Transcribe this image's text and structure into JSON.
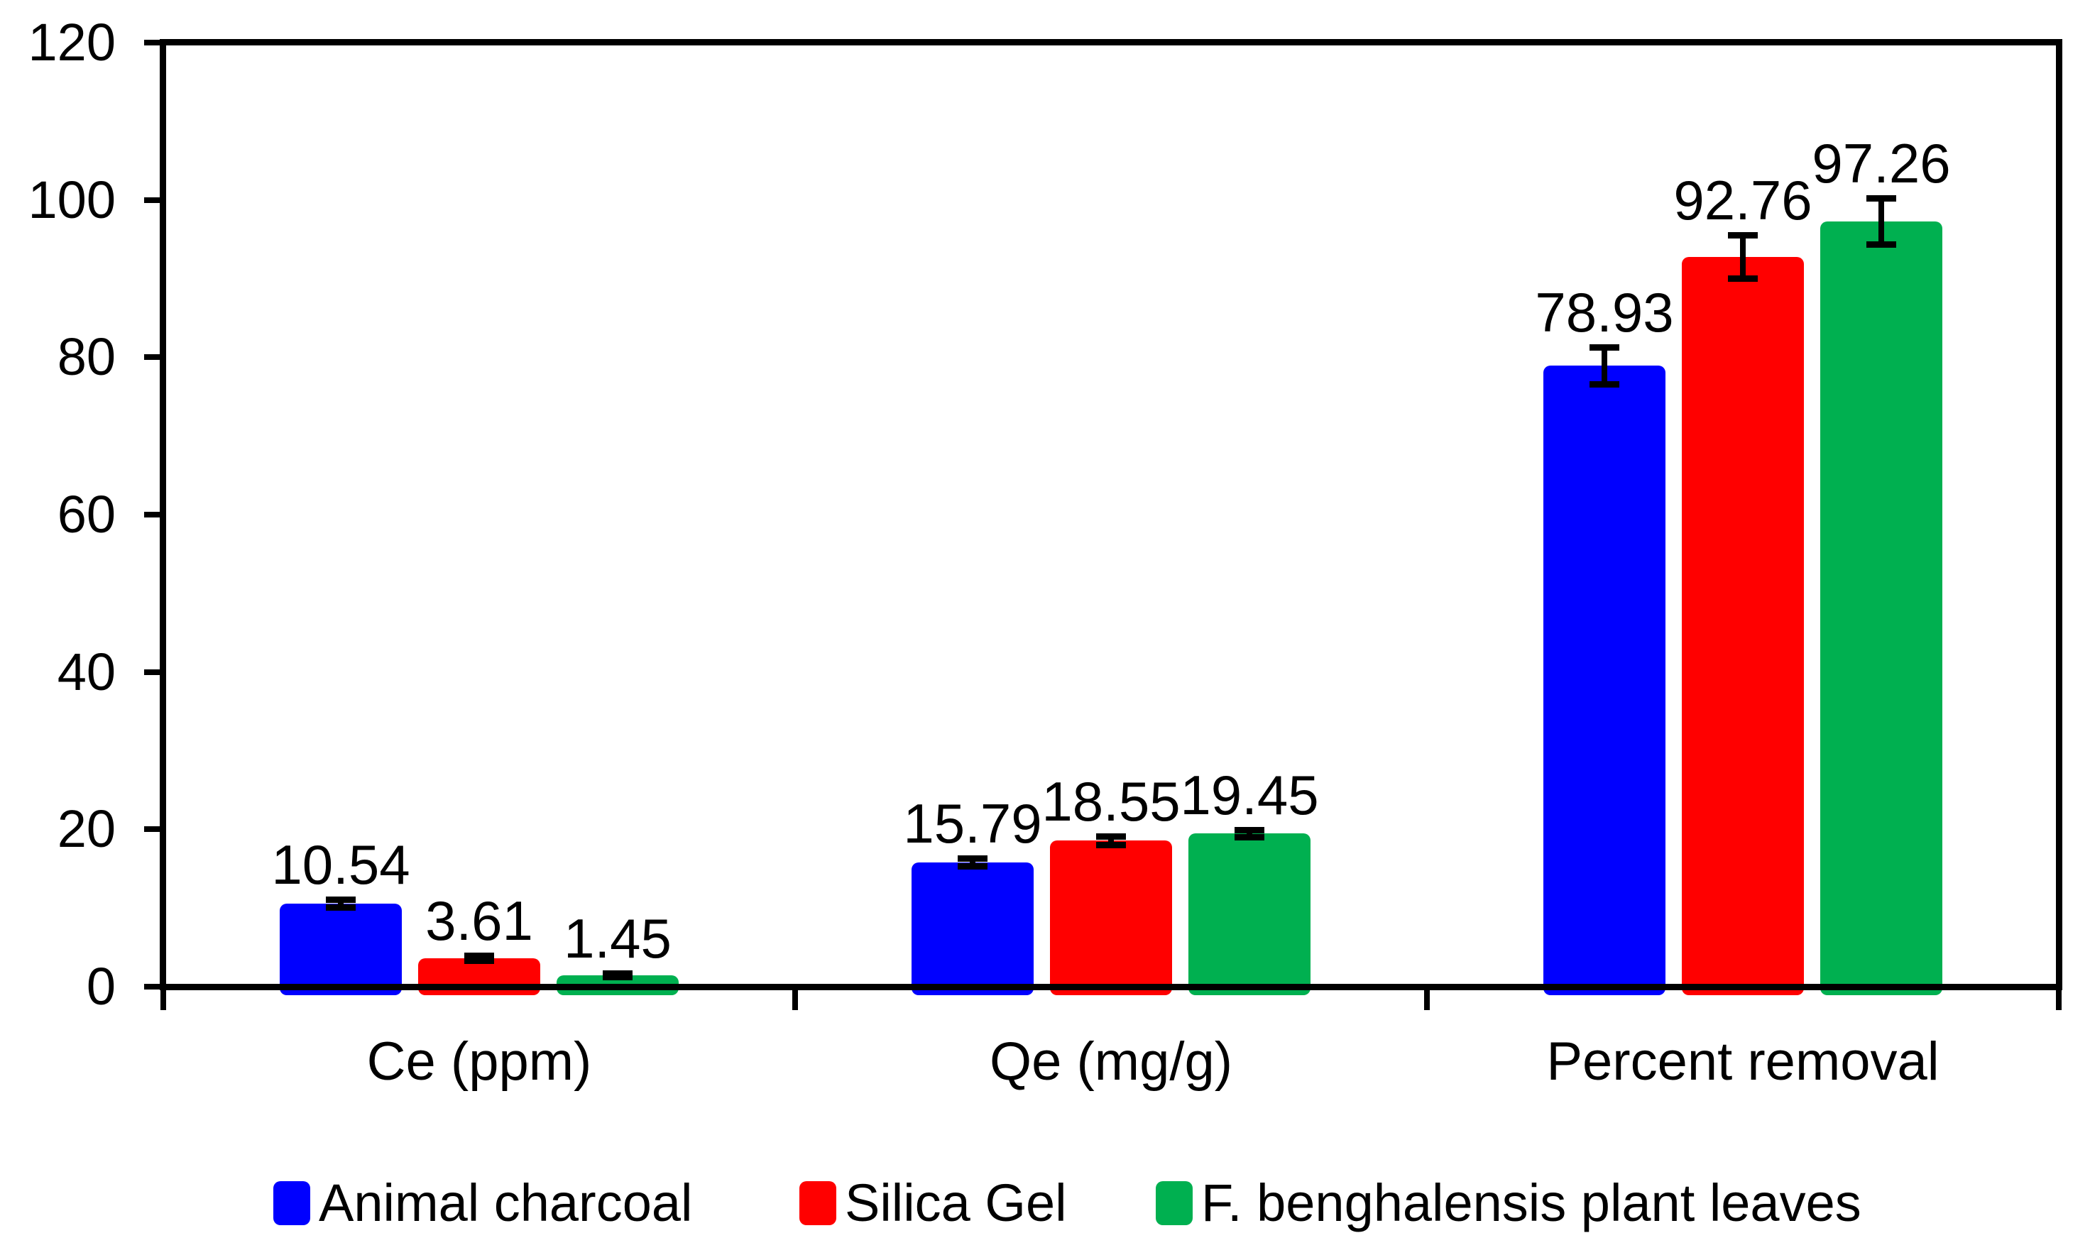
{
  "chart_data": {
    "type": "bar",
    "title": "",
    "xlabel": "",
    "ylabel": "",
    "categories": [
      "Ce (ppm)",
      "Qe (mg/g)",
      "Percent removal"
    ],
    "series": [
      {
        "name": "Animal charcoal",
        "color": "#0000FF",
        "values": [
          10.54,
          15.79,
          78.93
        ],
        "errors": [
          0.55,
          0.5,
          2.4
        ]
      },
      {
        "name": "Silica Gel",
        "color": "#FF0000",
        "values": [
          3.61,
          18.55,
          92.76
        ],
        "errors": [
          0.35,
          0.6,
          2.8
        ]
      },
      {
        "name": "F. benghalensis plant leaves",
        "color": "#00B050",
        "values": [
          1.45,
          19.45,
          97.26
        ],
        "errors": [
          0.3,
          0.5,
          3.0
        ]
      }
    ],
    "value_labels": [
      [
        "10.54",
        "15.79",
        "78.93"
      ],
      [
        "3.61",
        "18.55",
        "92.76"
      ],
      [
        "1.45",
        "19.45",
        "97.26"
      ]
    ],
    "ylim": [
      0,
      120
    ],
    "yticks": [
      0,
      20,
      40,
      60,
      80,
      100,
      120
    ],
    "grid": false,
    "legend_position": "bottom",
    "error_bars": true,
    "colors": {
      "axis": "#000000",
      "text": "#000000",
      "error_bar": "#000000",
      "background": "#FFFFFF"
    }
  }
}
